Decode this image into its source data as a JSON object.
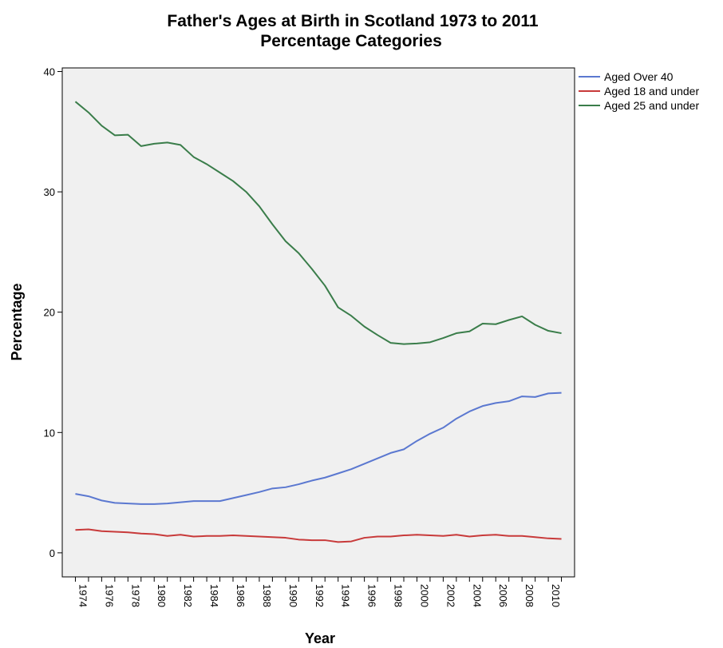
{
  "chart_data": {
    "type": "line",
    "title": "Father's Ages at Birth in Scotland 1973 to 2011",
    "subtitle": "Percentage Categories",
    "xlabel": "Year",
    "ylabel": "Percentage",
    "xlim": [
      1973,
      2012
    ],
    "ylim": [
      -2,
      40.3
    ],
    "yticks": [
      0,
      10,
      20,
      30,
      40
    ],
    "xticks": [
      1974,
      1976,
      1978,
      1980,
      1982,
      1984,
      1986,
      1988,
      1990,
      1992,
      1994,
      1996,
      1998,
      2000,
      2002,
      2004,
      2006,
      2008,
      2010
    ],
    "legend_position": "right",
    "plot_background": "#f0f0f0",
    "grid": false,
    "x": [
      1974,
      1975,
      1976,
      1977,
      1978,
      1979,
      1980,
      1981,
      1982,
      1983,
      1984,
      1985,
      1986,
      1987,
      1988,
      1989,
      1990,
      1991,
      1992,
      1993,
      1994,
      1995,
      1996,
      1997,
      1998,
      1999,
      2000,
      2001,
      2002,
      2003,
      2004,
      2005,
      2006,
      2007,
      2008,
      2009,
      2010,
      2011
    ],
    "series": [
      {
        "name": "Aged Over 40",
        "color": "#5b78d0",
        "values": [
          4.9,
          4.7,
          4.35,
          4.15,
          4.1,
          4.05,
          4.05,
          4.1,
          4.2,
          4.3,
          4.3,
          4.3,
          4.55,
          4.8,
          5.05,
          5.35,
          5.45,
          5.7,
          6.0,
          6.25,
          6.6,
          6.95,
          7.4,
          7.85,
          8.3,
          8.6,
          9.3,
          9.9,
          10.4,
          11.15,
          11.75,
          12.2,
          12.45,
          12.6,
          13.0,
          12.95,
          13.25,
          13.3
        ]
      },
      {
        "name": "Aged 18 and under",
        "color": "#c83a3a",
        "values": [
          1.9,
          1.95,
          1.8,
          1.75,
          1.7,
          1.6,
          1.55,
          1.4,
          1.5,
          1.35,
          1.4,
          1.4,
          1.45,
          1.4,
          1.35,
          1.3,
          1.25,
          1.1,
          1.05,
          1.05,
          0.9,
          0.95,
          1.25,
          1.35,
          1.35,
          1.45,
          1.5,
          1.45,
          1.4,
          1.5,
          1.35,
          1.45,
          1.5,
          1.4,
          1.4,
          1.3,
          1.2,
          1.15
        ]
      },
      {
        "name": "Aged 25 and under",
        "color": "#3a7d4a",
        "values": [
          37.5,
          36.6,
          35.5,
          34.7,
          34.75,
          33.8,
          34.0,
          34.1,
          33.9,
          32.9,
          32.3,
          31.6,
          30.9,
          30.0,
          28.8,
          27.3,
          25.9,
          24.9,
          23.6,
          22.2,
          20.4,
          19.7,
          18.8,
          18.1,
          17.45,
          17.35,
          17.4,
          17.5,
          17.85,
          18.25,
          18.4,
          19.05,
          19.0,
          19.35,
          19.65,
          18.95,
          18.45,
          18.25
        ]
      }
    ]
  }
}
